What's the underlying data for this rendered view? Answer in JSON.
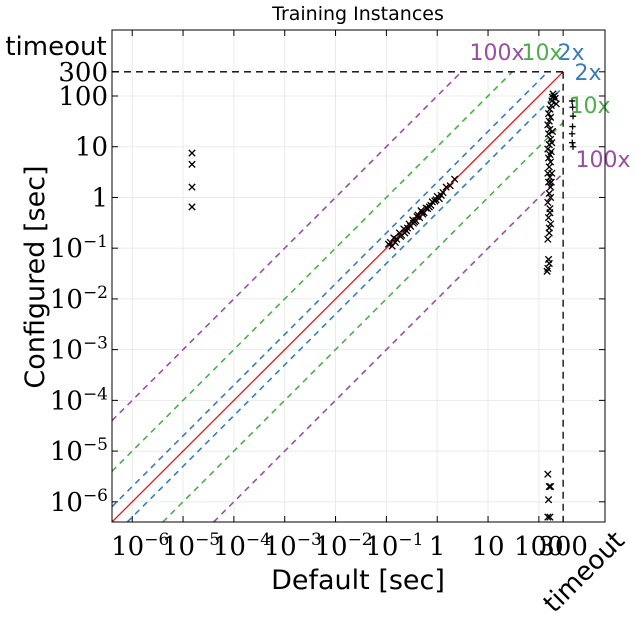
{
  "chart_data": {
    "type": "scatter",
    "title": "Training Instances",
    "xlabel": "Default [sec]",
    "ylabel": "Configured [sec]",
    "xscale": "log",
    "yscale": "log",
    "xlim": [
      4e-07,
      2000
    ],
    "ylim": [
      4e-07,
      2000
    ],
    "grid": true,
    "timeout": 300,
    "timeout_label": "timeout",
    "x_ticks": [
      {
        "value": 1e-06,
        "base": "10",
        "exp": "−6"
      },
      {
        "value": 1e-05,
        "base": "10",
        "exp": "−5"
      },
      {
        "value": 0.0001,
        "base": "10",
        "exp": "−4"
      },
      {
        "value": 0.001,
        "base": "10",
        "exp": "−3"
      },
      {
        "value": 0.01,
        "base": "10",
        "exp": "−2"
      },
      {
        "value": 0.1,
        "base": "10",
        "exp": "−1"
      },
      {
        "value": 1,
        "label": "1"
      },
      {
        "value": 10,
        "label": "10"
      },
      {
        "value": 100,
        "label": "100"
      },
      {
        "value": 300,
        "label": "300"
      }
    ],
    "y_ticks": [
      {
        "value": 1e-06,
        "base": "10",
        "exp": "−6"
      },
      {
        "value": 1e-05,
        "base": "10",
        "exp": "−5"
      },
      {
        "value": 0.0001,
        "base": "10",
        "exp": "−4"
      },
      {
        "value": 0.001,
        "base": "10",
        "exp": "−3"
      },
      {
        "value": 0.01,
        "base": "10",
        "exp": "−2"
      },
      {
        "value": 0.1,
        "base": "10",
        "exp": "−1"
      },
      {
        "value": 1,
        "label": "1"
      },
      {
        "value": 10,
        "label": "10"
      },
      {
        "value": 100,
        "label": "100"
      },
      {
        "value": 300,
        "label": "300"
      }
    ],
    "diagonals": [
      {
        "factor": 2,
        "label": "2x",
        "color": "#377eb8"
      },
      {
        "factor": 10,
        "label": "10x",
        "color": "#4daf4a"
      },
      {
        "factor": 100,
        "label": "100x",
        "color": "#984ea3"
      }
    ],
    "identity_color": "#e41a1c",
    "marker_color": "#000000",
    "series": [
      {
        "marker": "x",
        "points": [
          [
            1.5e-05,
            7.5
          ],
          [
            1.5e-05,
            4.5
          ],
          [
            1.5e-05,
            1.6
          ],
          [
            1.5e-05,
            0.65
          ],
          [
            0.12,
            0.13
          ],
          [
            0.14,
            0.16
          ],
          [
            0.16,
            0.15
          ],
          [
            0.18,
            0.2
          ],
          [
            0.2,
            0.18
          ],
          [
            0.22,
            0.24
          ],
          [
            0.25,
            0.22
          ],
          [
            0.28,
            0.3
          ],
          [
            0.3,
            0.27
          ],
          [
            0.33,
            0.36
          ],
          [
            0.36,
            0.33
          ],
          [
            0.4,
            0.42
          ],
          [
            0.45,
            0.4
          ],
          [
            0.5,
            0.52
          ],
          [
            0.55,
            0.5
          ],
          [
            0.6,
            0.62
          ],
          [
            0.7,
            0.65
          ],
          [
            0.8,
            0.82
          ],
          [
            0.9,
            0.85
          ],
          [
            1.0,
            1.05
          ],
          [
            1.2,
            1.1
          ],
          [
            1.5,
            1.6
          ],
          [
            1.8,
            1.7
          ],
          [
            2.2,
            2.3
          ],
          [
            0.15,
            0.13
          ],
          [
            0.19,
            0.17
          ],
          [
            0.26,
            0.25
          ],
          [
            0.34,
            0.31
          ],
          [
            0.42,
            0.45
          ],
          [
            0.52,
            0.47
          ],
          [
            0.65,
            0.6
          ],
          [
            0.75,
            0.7
          ],
          [
            0.95,
            0.9
          ],
          [
            1.3,
            1.25
          ],
          [
            0.11,
            0.12
          ],
          [
            0.13,
            0.11
          ],
          [
            0.23,
            0.2
          ],
          [
            0.38,
            0.35
          ],
          [
            0.48,
            0.55
          ],
          [
            1.1,
            0.95
          ],
          [
            150,
            3.5e-06
          ],
          [
            160,
            2e-06
          ],
          [
            170,
            2e-06
          ],
          [
            155,
            1.1e-06
          ],
          [
            150,
            5e-07
          ],
          [
            165,
            5e-07
          ],
          [
            150,
            0.04
          ],
          [
            160,
            0.05
          ],
          [
            145,
            0.035
          ],
          [
            155,
            0.06
          ],
          [
            150,
            0.15
          ],
          [
            160,
            0.2
          ],
          [
            170,
            0.3
          ],
          [
            155,
            0.4
          ],
          [
            165,
            0.6
          ],
          [
            150,
            0.8
          ],
          [
            160,
            1.2
          ],
          [
            170,
            1.6
          ],
          [
            155,
            2.0
          ],
          [
            165,
            2.5
          ],
          [
            150,
            3.0
          ],
          [
            160,
            4.0
          ],
          [
            170,
            5.0
          ],
          [
            155,
            6.0
          ],
          [
            165,
            7.0
          ],
          [
            150,
            9.0
          ],
          [
            160,
            11
          ],
          [
            170,
            14
          ],
          [
            155,
            18
          ],
          [
            165,
            22
          ],
          [
            150,
            27
          ],
          [
            160,
            32
          ],
          [
            170,
            38
          ],
          [
            155,
            45
          ],
          [
            165,
            55
          ],
          [
            175,
            65
          ],
          [
            180,
            80
          ],
          [
            185,
            95
          ],
          [
            190,
            110
          ],
          [
            200,
            100
          ],
          [
            210,
            90
          ],
          [
            220,
            70
          ],
          [
            160,
            0.25
          ],
          [
            165,
            0.5
          ],
          [
            170,
            1.0
          ],
          [
            175,
            2.0
          ],
          [
            180,
            3.0
          ],
          [
            175,
            8.0
          ],
          [
            180,
            12
          ],
          [
            185,
            20
          ]
        ]
      },
      {
        "marker": "+",
        "points": [
          [
            450,
            80
          ],
          [
            460,
            60
          ],
          [
            470,
            40
          ],
          [
            460,
            25
          ],
          [
            450,
            18
          ],
          [
            455,
            12
          ],
          [
            470,
            10
          ]
        ]
      }
    ]
  }
}
